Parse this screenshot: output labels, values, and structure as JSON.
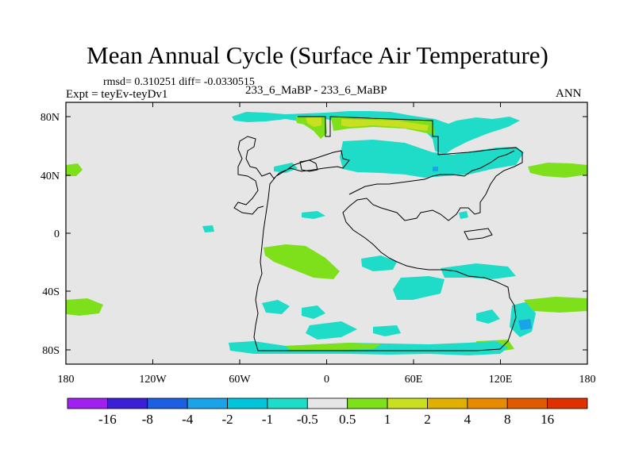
{
  "title": "Mean Annual Cycle (Surface Air Temperature)",
  "stats": "rmsd= 0.310251 diff= -0.0330515",
  "expt": "Expt = teyEv-teyDv1",
  "case": "233_6_MaBP - 233_6_MaBP",
  "season": "ANN",
  "axes": {
    "x_ticks": [
      "180",
      "120W",
      "60W",
      "0",
      "60E",
      "120E",
      "180"
    ],
    "y_ticks": [
      "80N",
      "40N",
      "0",
      "40S",
      "80S"
    ]
  },
  "colorbar": {
    "colors": [
      "#a020f0",
      "#3a1fd6",
      "#1c5fe0",
      "#1aa3e8",
      "#00c3dc",
      "#1fdcc8",
      "#e6e6e6",
      "#7ee01a",
      "#c8e020",
      "#e0b000",
      "#e88a00",
      "#e05a00",
      "#e03000"
    ],
    "labels": [
      "-16",
      "-8",
      "-4",
      "-2",
      "-1",
      "-0.5",
      "0.5",
      "1",
      "2",
      "4",
      "8",
      "16"
    ]
  }
}
